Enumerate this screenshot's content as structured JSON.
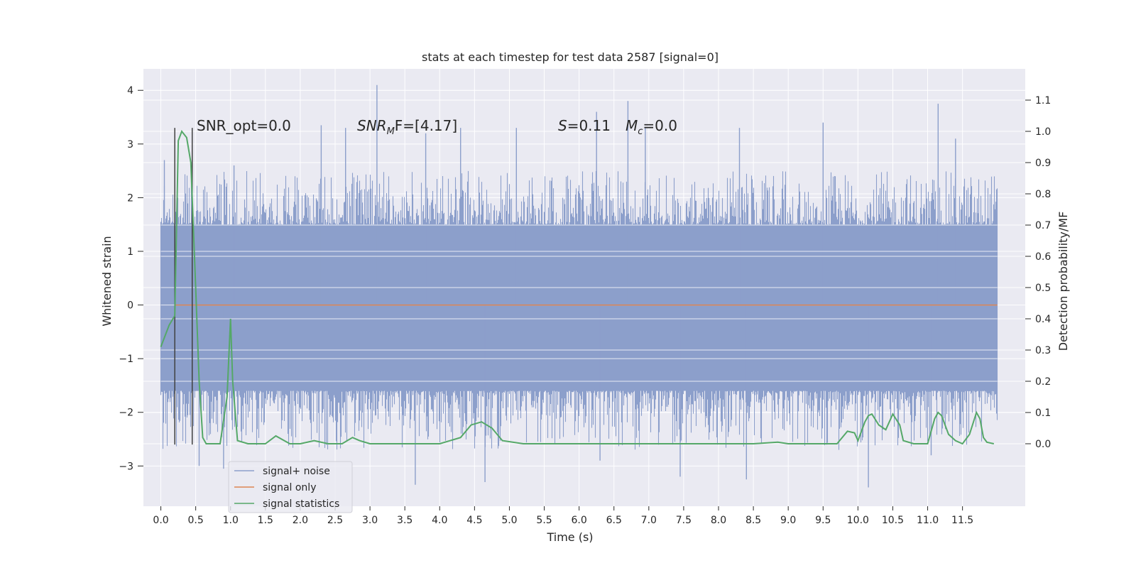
{
  "chart_data": {
    "type": "line",
    "title": "stats at each timestep for test data 2587 [signal=0]",
    "xlabel": "Time (s)",
    "ylabel_left": "Whitened strain",
    "ylabel_right": "Detection probability/MF",
    "xlim": [
      -0.25,
      12.4
    ],
    "ylim_left": [
      -3.75,
      4.4
    ],
    "ylim_right": [
      -0.2,
      1.2
    ],
    "x_ticks": [
      "0.0",
      "0.5",
      "1.0",
      "1.5",
      "2.0",
      "2.5",
      "3.0",
      "3.5",
      "4.0",
      "4.5",
      "5.0",
      "5.5",
      "6.0",
      "6.5",
      "7.0",
      "7.5",
      "8.0",
      "8.5",
      "9.0",
      "9.5",
      "10.0",
      "10.5",
      "11.0",
      "11.5"
    ],
    "y_ticks_left": [
      "−3",
      "−2",
      "−1",
      "0",
      "1",
      "2",
      "3",
      "4"
    ],
    "y_ticks_right": [
      "0.0",
      "0.1",
      "0.2",
      "0.3",
      "0.4",
      "0.5",
      "0.6",
      "0.7",
      "0.8",
      "0.9",
      "1.0",
      "1.1"
    ],
    "grid": true,
    "legend_position": "lower-left",
    "colors": {
      "background": "#EAEAF2",
      "grid": "#FFFFFF",
      "noise": "#8C9FCB",
      "signal": "#DD8452",
      "stats": "#55A868",
      "marker": "#404040"
    },
    "annotations": {
      "snr_opt": "SNR_opt=0.0",
      "snr_mf_base": "SNR",
      "snr_mf_sub": "M",
      "snr_mf_rest": "F=[4.17]",
      "s_label": "S",
      "s_value": "=0.11",
      "mc_label": "M",
      "mc_sub": "c",
      "mc_value": "=0.0"
    },
    "noise_envelope": {
      "x": [
        0.0,
        12.0
      ],
      "typical_max": 1.8,
      "typical_min": -2.0,
      "peaks_max": [
        [
          0.05,
          2.7
        ],
        [
          0.45,
          2.9
        ],
        [
          1.05,
          2.6
        ],
        [
          2.3,
          3.35
        ],
        [
          2.65,
          3.3
        ],
        [
          3.1,
          4.1
        ],
        [
          3.8,
          3.2
        ],
        [
          4.3,
          3.3
        ],
        [
          5.1,
          3.3
        ],
        [
          6.25,
          3.6
        ],
        [
          6.7,
          3.8
        ],
        [
          6.95,
          3.3
        ],
        [
          8.3,
          3.3
        ],
        [
          9.5,
          3.4
        ],
        [
          11.15,
          3.75
        ],
        [
          11.4,
          3.1
        ]
      ],
      "peaks_min": [
        [
          0.2,
          -2.6
        ],
        [
          0.55,
          -3.0
        ],
        [
          3.65,
          -3.35
        ],
        [
          4.65,
          -3.3
        ],
        [
          6.3,
          -2.9
        ],
        [
          7.45,
          -3.2
        ],
        [
          8.4,
          -3.25
        ],
        [
          10.15,
          -3.4
        ],
        [
          11.05,
          -2.8
        ],
        [
          0.9,
          -3.05
        ]
      ]
    },
    "markers": [
      {
        "x": 0.2,
        "y_top": 3.3,
        "y_bottom": -2.6
      },
      {
        "x": 0.45,
        "y_top": 3.3,
        "y_bottom": -2.6
      }
    ],
    "series": [
      {
        "name": "signal+ noise",
        "kind": "noise",
        "x": [
          0.0,
          12.0
        ]
      },
      {
        "name": "signal only",
        "kind": "line_left",
        "x": [
          0.2,
          12.0
        ],
        "y": [
          0.0,
          0.0
        ]
      },
      {
        "name": "signal statistics",
        "kind": "line_right",
        "x": [
          0.0,
          0.12,
          0.2,
          0.25,
          0.3,
          0.37,
          0.43,
          0.5,
          0.55,
          0.6,
          0.65,
          0.75,
          0.85,
          0.95,
          1.0,
          1.03,
          1.1,
          1.25,
          1.5,
          1.65,
          1.85,
          2.0,
          2.2,
          2.4,
          2.6,
          2.75,
          2.85,
          3.0,
          3.5,
          4.0,
          4.3,
          4.45,
          4.6,
          4.75,
          4.9,
          5.2,
          6.0,
          6.5,
          7.0,
          7.5,
          8.0,
          8.5,
          8.85,
          9.0,
          9.2,
          9.5,
          9.7,
          9.85,
          9.95,
          10.0,
          10.1,
          10.15,
          10.2,
          10.3,
          10.4,
          10.5,
          10.6,
          10.65,
          10.8,
          11.0,
          11.1,
          11.15,
          11.2,
          11.3,
          11.4,
          11.5,
          11.6,
          11.7,
          11.75,
          11.8,
          11.85,
          11.95
        ],
        "y": [
          0.31,
          0.38,
          0.41,
          0.97,
          1.0,
          0.98,
          0.9,
          0.5,
          0.2,
          0.02,
          0.0,
          0.0,
          0.0,
          0.15,
          0.4,
          0.2,
          0.01,
          0.0,
          0.0,
          0.025,
          0.0,
          0.0,
          0.01,
          0.0,
          0.0,
          0.02,
          0.01,
          0.0,
          0.0,
          0.0,
          0.02,
          0.06,
          0.07,
          0.05,
          0.01,
          0.0,
          0.0,
          0.0,
          0.0,
          0.0,
          0.0,
          0.0,
          0.005,
          0.0,
          0.0,
          0.0,
          0.0,
          0.04,
          0.035,
          0.01,
          0.07,
          0.09,
          0.095,
          0.06,
          0.045,
          0.095,
          0.06,
          0.01,
          0.0,
          0.0,
          0.08,
          0.1,
          0.09,
          0.03,
          0.01,
          0.0,
          0.03,
          0.1,
          0.08,
          0.02,
          0.005,
          0.0
        ]
      }
    ]
  }
}
